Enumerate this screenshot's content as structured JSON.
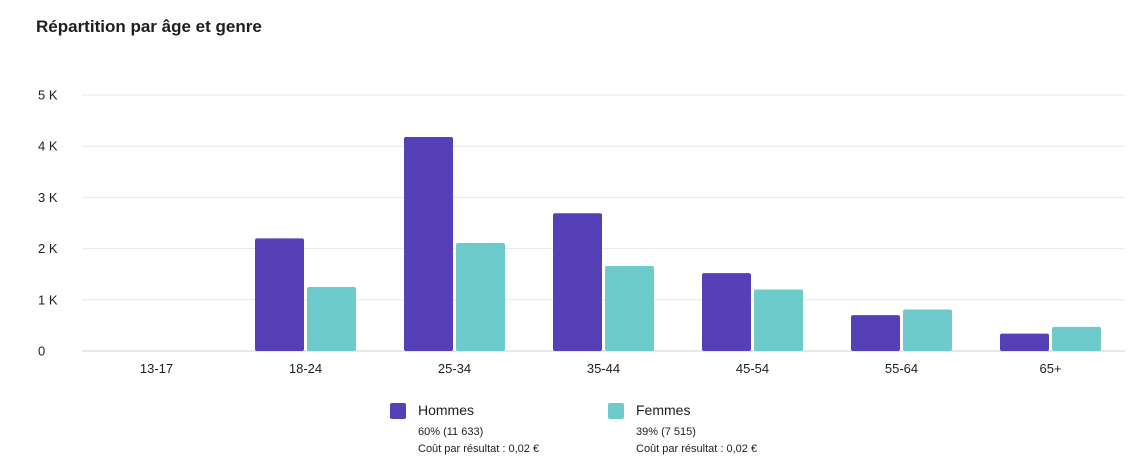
{
  "title": "Répartition par âge et genre",
  "chart_data": {
    "type": "bar",
    "title": "Répartition par âge et genre",
    "xlabel": "",
    "ylabel": "",
    "ylim": [
      0,
      5000
    ],
    "yticks": [
      0,
      1000,
      2000,
      3000,
      4000,
      5000
    ],
    "ytick_labels": [
      "0",
      "1 K",
      "2 K",
      "3 K",
      "4 K",
      "5 K"
    ],
    "categories": [
      "13-17",
      "18-24",
      "25-34",
      "35-44",
      "45-54",
      "55-64",
      "65+"
    ],
    "grid": true,
    "legend_position": "bottom",
    "series": [
      {
        "name": "Hommes",
        "color": "#5540b8",
        "values": [
          0,
          2200,
          4180,
          2690,
          1520,
          700,
          340
        ]
      },
      {
        "name": "Femmes",
        "color": "#6ecbcb",
        "values": [
          0,
          1250,
          2110,
          1660,
          1200,
          810,
          470
        ]
      }
    ]
  },
  "legend": [
    {
      "name": "Hommes",
      "color": "#5540b8",
      "share": "60% (11 633)",
      "cost": "Coût par résultat : 0,02 €"
    },
    {
      "name": "Femmes",
      "color": "#6ecbcb",
      "share": "39% (7 515)",
      "cost": "Coût par résultat : 0,02 €"
    }
  ]
}
